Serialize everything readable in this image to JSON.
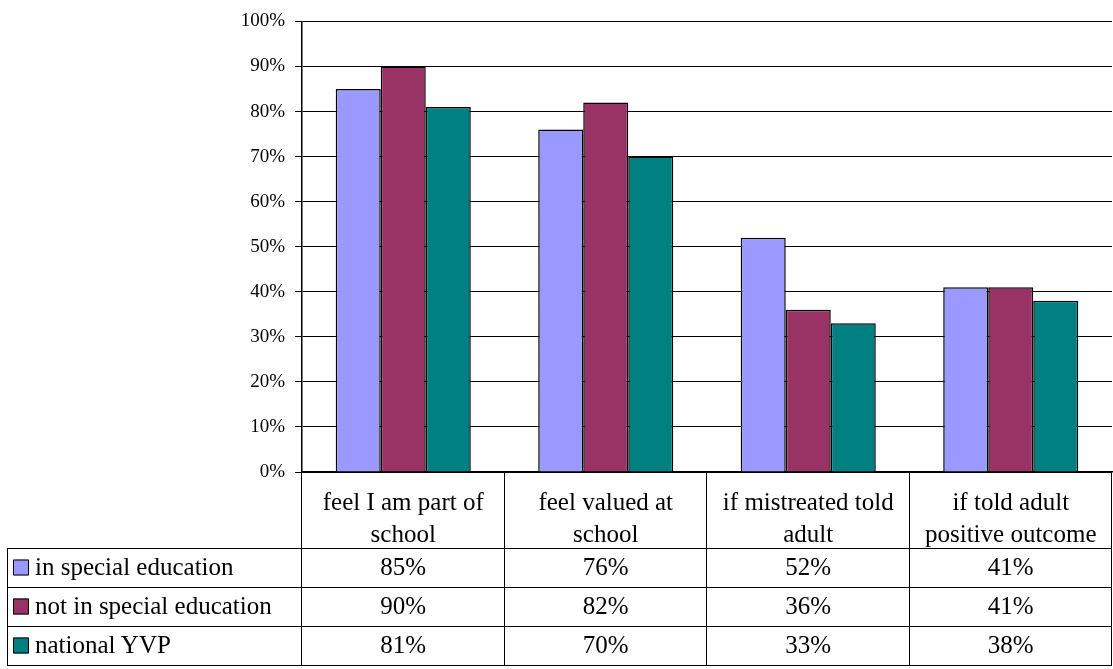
{
  "chart_data": {
    "type": "bar",
    "categories": [
      "feel I am part of school",
      "feel valued at school",
      "if mistreated told adult",
      "if told adult positive outcome"
    ],
    "series": [
      {
        "name": "in special education",
        "color": "#9999ff",
        "values": [
          85,
          76,
          52,
          41
        ],
        "value_labels": [
          "85%",
          "76%",
          "52%",
          "41%"
        ]
      },
      {
        "name": "not in special education",
        "color": "#993366",
        "values": [
          90,
          82,
          36,
          41
        ],
        "value_labels": [
          "90%",
          "82%",
          "36%",
          "41%"
        ]
      },
      {
        "name": "national YVP",
        "color": "#008080",
        "values": [
          81,
          70,
          33,
          38
        ],
        "value_labels": [
          "81%",
          "70%",
          "33%",
          "38%"
        ]
      }
    ],
    "ylim": [
      0,
      100
    ],
    "yticks": [
      {
        "value": 0,
        "label": "0%"
      },
      {
        "value": 10,
        "label": "10%"
      },
      {
        "value": 20,
        "label": "20%"
      },
      {
        "value": 30,
        "label": "30%"
      },
      {
        "value": 40,
        "label": "40%"
      },
      {
        "value": 50,
        "label": "50%"
      },
      {
        "value": 60,
        "label": "60%"
      },
      {
        "value": 70,
        "label": "70%"
      },
      {
        "value": 80,
        "label": "80%"
      },
      {
        "value": 90,
        "label": "90%"
      },
      {
        "value": 100,
        "label": "100%"
      }
    ],
    "grid": "y",
    "legend": "bottom"
  }
}
